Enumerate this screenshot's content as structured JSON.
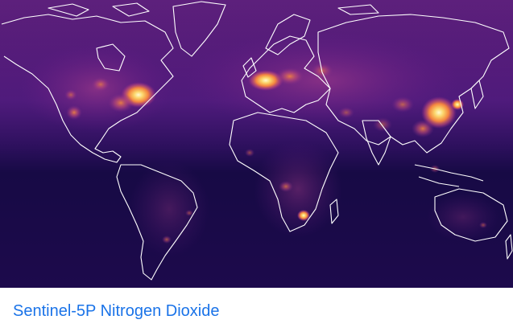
{
  "card": {
    "title": "Sentinel-5P Nitrogen Dioxide",
    "link_color": "#1a73e8"
  },
  "map": {
    "layer": "tropospheric NO2 column",
    "projection": "mercator",
    "palette": [
      "#1c0a4e",
      "#3b1277",
      "#6a1d8a",
      "#9a2b86",
      "#d04f6a",
      "#f3843f",
      "#fbd56a",
      "#fffbd0"
    ],
    "coastline_color": "#ffffff"
  }
}
